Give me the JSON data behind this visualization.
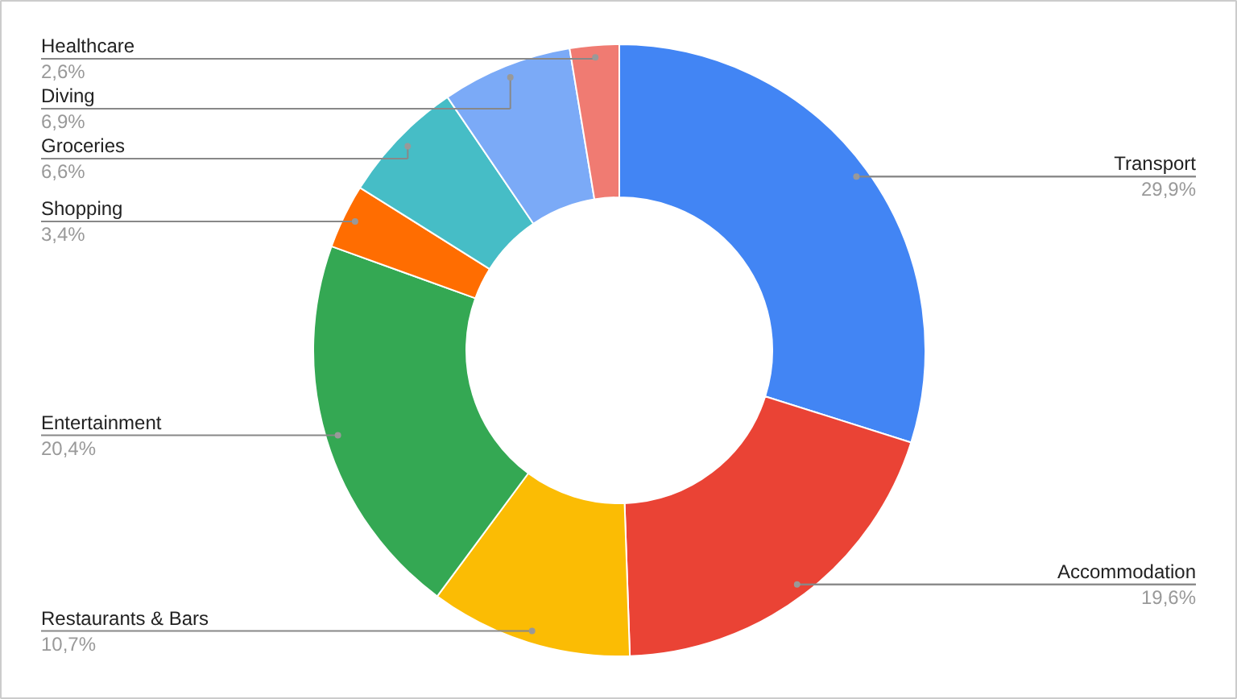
{
  "chart_data": {
    "type": "donut",
    "categories": [
      "Transport",
      "Accommodation",
      "Restaurants & Bars",
      "Entertainment",
      "Shopping",
      "Groceries",
      "Diving",
      "Healthcare"
    ],
    "values": [
      29.9,
      19.6,
      10.7,
      20.4,
      3.4,
      6.6,
      6.9,
      2.6
    ],
    "value_labels": [
      "29,9%",
      "19,6%",
      "10,7%",
      "20,4%",
      "3,4%",
      "6,6%",
      "6,9%",
      "2,6%"
    ],
    "colors": [
      "#4285f4",
      "#ea4335",
      "#fbbc04",
      "#34a853",
      "#ff6d01",
      "#46bdc6",
      "#7baaf7",
      "#f07b72"
    ]
  }
}
